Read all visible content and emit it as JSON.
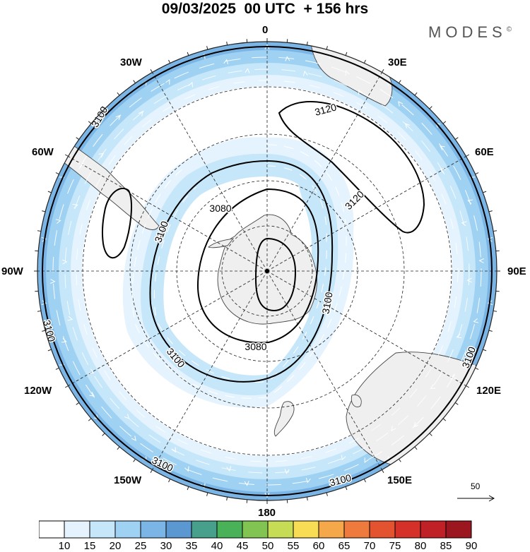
{
  "header": {
    "title": "09/03/2025  00 UTC  + 156 hrs",
    "brand": "MODES",
    "brand_mark": "©"
  },
  "map": {
    "projection": "south polar stereographic",
    "longitude_labels": {
      "top": "0",
      "upper_right": "30E",
      "right_upper": "60E",
      "right": "90E",
      "right_lower": "120E",
      "lower_right": "150E",
      "bottom": "180",
      "lower_left": "150W",
      "left_lower": "120W",
      "left": "90W",
      "left_upper": "60W",
      "upper_left": "30W"
    },
    "contour_labels": [
      "3100",
      "3120",
      "3120",
      "3080",
      "3100",
      "3100",
      "3080",
      "3100",
      "3100",
      "3100",
      "3100",
      "3100"
    ],
    "reference_vector": {
      "value": "50",
      "icon": "arrow-right-icon"
    },
    "colors": {
      "land": "#efefef",
      "coast": "#444444",
      "contour": "#000000",
      "streamline": "#ffffff"
    }
  },
  "colorbar": {
    "labels": [
      "10",
      "15",
      "20",
      "25",
      "30",
      "35",
      "40",
      "45",
      "50",
      "55",
      "60",
      "65",
      "70",
      "75",
      "80",
      "85",
      "90"
    ],
    "colors": [
      "#ffffff",
      "#e4f3fd",
      "#c6e6fa",
      "#9fd1f2",
      "#7ab5e6",
      "#5b97d1",
      "#46a08b",
      "#49b259",
      "#82c451",
      "#c7dc55",
      "#f8dc54",
      "#f4a84a",
      "#ef7a3d",
      "#e4532f",
      "#d63129",
      "#bf2126",
      "#9c1620"
    ]
  }
}
